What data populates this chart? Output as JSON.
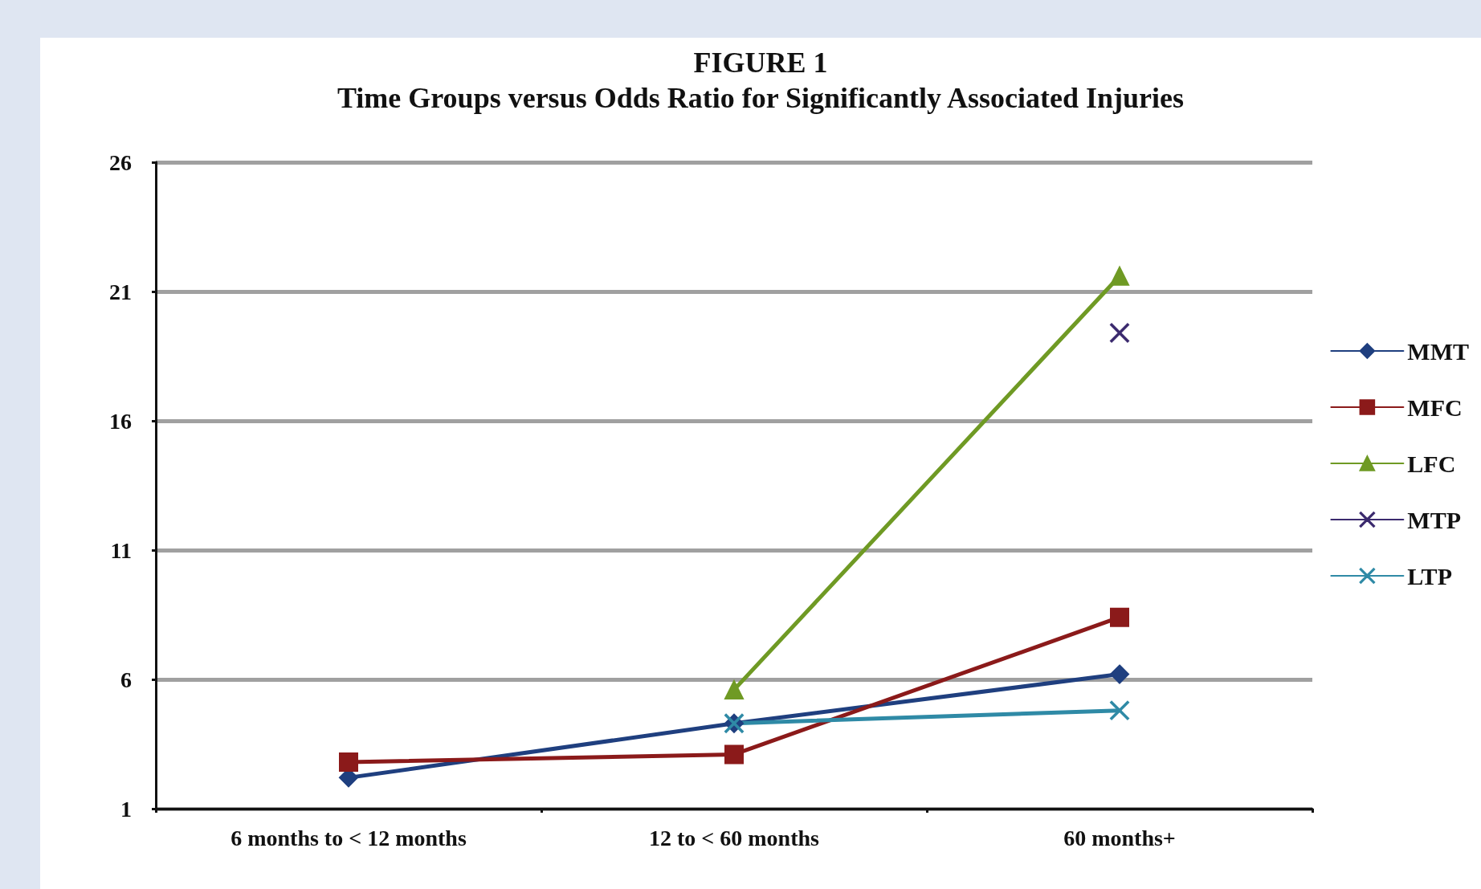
{
  "chart_data": {
    "type": "line",
    "title": "FIGURE 1",
    "subtitle": "Time Groups versus Odds Ratio for Significantly Associated Injuries",
    "categories": [
      "6 months to < 12 months",
      "12 to < 60 months",
      "60 months+"
    ],
    "series": [
      {
        "name": "MMT",
        "color": "#1f3f7f",
        "marker": "diamond",
        "values": [
          2.2,
          4.3,
          6.2
        ]
      },
      {
        "name": "MFC",
        "color": "#8b1a1a",
        "marker": "square",
        "values": [
          2.8,
          3.1,
          8.4
        ]
      },
      {
        "name": "LFC",
        "color": "#6f9a24",
        "marker": "triangle",
        "values": [
          null,
          5.6,
          21.6
        ]
      },
      {
        "name": "MTP",
        "color": "#3b2a6e",
        "marker": "cross",
        "values": [
          null,
          null,
          19.4
        ]
      },
      {
        "name": "LTP",
        "color": "#2f8aa6",
        "marker": "cross",
        "values": [
          null,
          4.3,
          4.8
        ]
      }
    ],
    "ylim": [
      1,
      26
    ],
    "yticks": [
      1,
      6,
      11,
      16,
      21,
      26
    ],
    "grid": "y",
    "legend": "right"
  }
}
